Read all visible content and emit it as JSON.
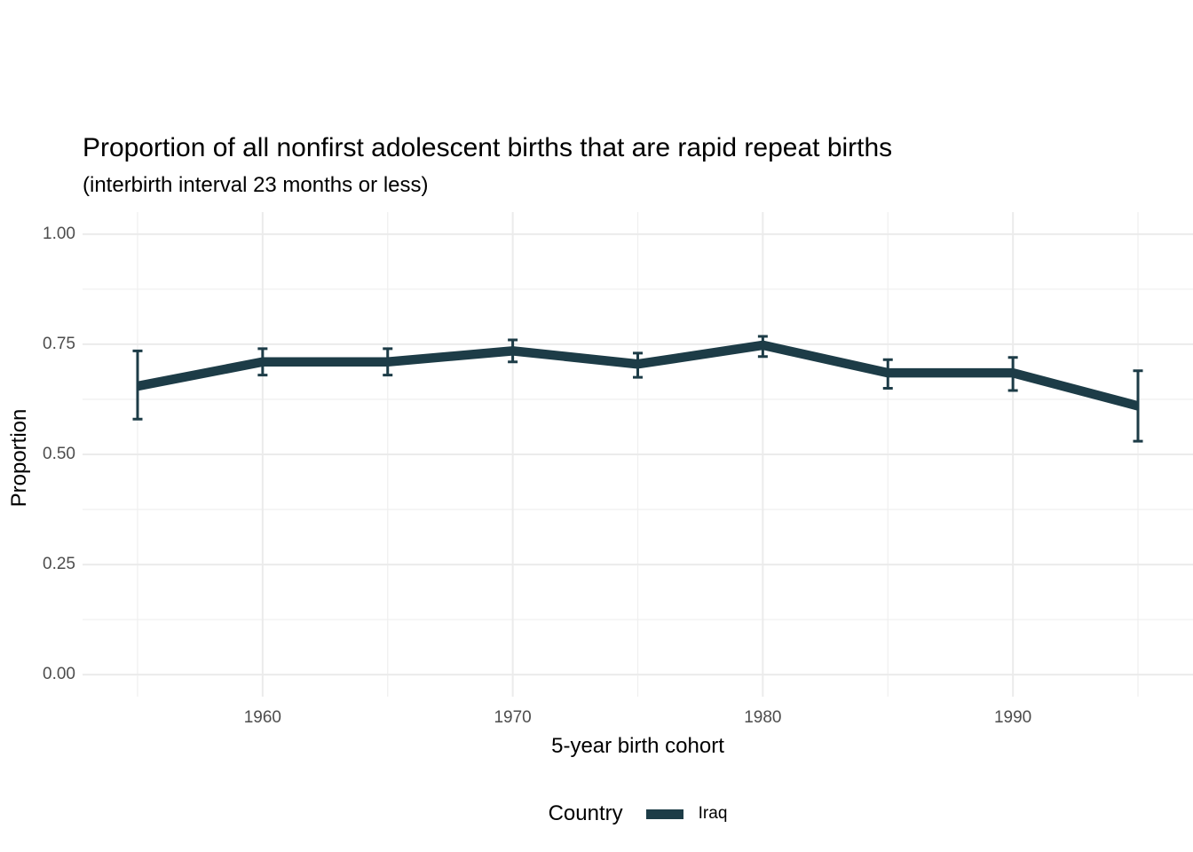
{
  "header": {
    "title": "Proportion of all nonfirst adolescent births that are rapid repeat births",
    "subtitle": "(interbirth interval 23 months or less)"
  },
  "axes": {
    "x_title": "5-year birth cohort",
    "y_title": "Proportion"
  },
  "legend": {
    "title": "Country",
    "items": [
      {
        "label": "Iraq",
        "color": "#1d3c47"
      }
    ]
  },
  "colors": {
    "line": "#1d3c47",
    "grid_major": "#ebebeb",
    "grid_minor": "#f0f0f0",
    "tick_text": "#4d4d4d",
    "text": "#000000",
    "background": "#ffffff"
  },
  "chart_data": {
    "type": "line",
    "title": "Proportion of all nonfirst adolescent births that are rapid repeat births",
    "subtitle": "(interbirth interval 23 months or less)",
    "xlabel": "5-year birth cohort",
    "ylabel": "Proportion",
    "grid": true,
    "legend_position": "bottom",
    "error_bars": true,
    "series": [
      {
        "name": "Iraq",
        "x": [
          1955,
          1960,
          1965,
          1970,
          1975,
          1980,
          1985,
          1990,
          1995
        ],
        "y": [
          0.655,
          0.71,
          0.71,
          0.735,
          0.705,
          0.748,
          0.685,
          0.685,
          0.61
        ],
        "ci_low": [
          0.58,
          0.68,
          0.68,
          0.71,
          0.675,
          0.722,
          0.65,
          0.645,
          0.53
        ],
        "ci_high": [
          0.735,
          0.74,
          0.74,
          0.76,
          0.73,
          0.768,
          0.715,
          0.72,
          0.69
        ]
      }
    ],
    "x_ticks": {
      "values": [
        1960,
        1970,
        1980,
        1990
      ],
      "labels": [
        "1960",
        "1970",
        "1980",
        "1990"
      ]
    },
    "x_minor": [
      1955,
      1965,
      1975,
      1985,
      1995
    ],
    "y_ticks": {
      "values": [
        0,
        0.25,
        0.5,
        0.75,
        1.0
      ],
      "labels": [
        "0.00",
        "0.25",
        "0.50",
        "0.75",
        "1.00"
      ]
    },
    "y_minor": [
      0.125,
      0.375,
      0.625,
      0.875
    ],
    "xlim": [
      1952.8,
      1997.2
    ],
    "ylim": [
      -0.05,
      1.05
    ]
  }
}
